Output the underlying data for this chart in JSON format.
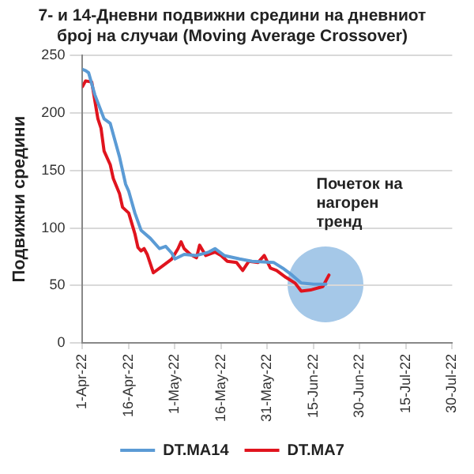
{
  "chart_data": {
    "type": "line",
    "title": "7- и 14-Дневни подвижни средини на дневниот број на случаи (Moving Average Crossover)",
    "ylabel": "Подвижни средини",
    "xlim": [
      "--04-01",
      "--07-30"
    ],
    "xticks": [
      {
        "value": "--04-01",
        "label": "1-Apr-22"
      },
      {
        "value": "--04-16",
        "label": "16-Apr-22"
      },
      {
        "value": "--05-01",
        "label": "1-May-22"
      },
      {
        "value": "--05-16",
        "label": "16-May-22"
      },
      {
        "value": "--05-31",
        "label": "31-May-22"
      },
      {
        "value": "--06-15",
        "label": "15-Jun-22"
      },
      {
        "value": "--06-30",
        "label": "30-Jun-22"
      },
      {
        "value": "--07-15",
        "label": "15-Jul-22"
      },
      {
        "value": "--07-30",
        "label": "30-Jul-22"
      }
    ],
    "ylim": [
      0,
      250
    ],
    "yticks": [
      0,
      50,
      100,
      150,
      200,
      250
    ],
    "grid": "y",
    "legend": "bottom",
    "marker": "none",
    "line_style": "solid",
    "annotations": [
      "Почеток на нагорен тренд"
    ],
    "series": [
      {
        "name": "DT.MA14",
        "color": "#5b9bd5",
        "x": [
          "--04-01",
          "--04-02",
          "--04-03",
          "--04-05",
          "--04-08",
          "--04-10",
          "--04-13",
          "--04-15",
          "--04-16",
          "--04-18",
          "--04-20",
          "--04-23",
          "--04-26",
          "--04-28",
          "--04-30",
          "--05-01",
          "--05-04",
          "--05-08",
          "--05-12",
          "--05-14",
          "--05-17",
          "--05-22",
          "--05-26",
          "--06-02",
          "--06-05",
          "--06-08",
          "--06-11",
          "--06-15",
          "--06-19"
        ],
        "values": [
          238,
          237,
          235,
          216,
          195,
          191,
          162,
          138,
          132,
          113,
          98,
          91,
          82,
          84,
          78,
          73,
          77,
          76,
          79,
          82,
          76,
          73,
          71,
          70,
          65,
          59,
          52,
          51,
          51
        ]
      },
      {
        "name": "DT.MA7",
        "color": "#e0141e",
        "x": [
          "--04-01",
          "--04-02",
          "--04-04",
          "--04-05",
          "--04-06",
          "--04-07",
          "--04-08",
          "--04-10",
          "--04-11",
          "--04-13",
          "--04-14",
          "--04-16",
          "--04-18",
          "--04-19",
          "--04-20",
          "--04-21",
          "--04-22",
          "--04-24",
          "--04-27",
          "--04-30",
          "--05-02",
          "--05-03",
          "--05-04",
          "--05-06",
          "--05-08",
          "--05-09",
          "--05-11",
          "--05-14",
          "--05-16",
          "--05-18",
          "--05-21",
          "--05-23",
          "--05-25",
          "--05-28",
          "--05-30",
          "--06-01",
          "--06-03",
          "--06-06",
          "--06-09",
          "--06-11",
          "--06-14",
          "--06-18",
          "--06-20"
        ],
        "values": [
          223,
          228,
          227,
          211,
          195,
          187,
          167,
          155,
          143,
          130,
          118,
          113,
          95,
          83,
          80,
          82,
          77,
          61,
          67,
          73,
          82,
          88,
          82,
          77,
          74,
          85,
          76,
          79,
          76,
          71,
          70,
          63,
          71,
          70,
          76,
          65,
          63,
          57,
          52,
          45,
          46,
          49,
          59
        ]
      }
    ]
  }
}
